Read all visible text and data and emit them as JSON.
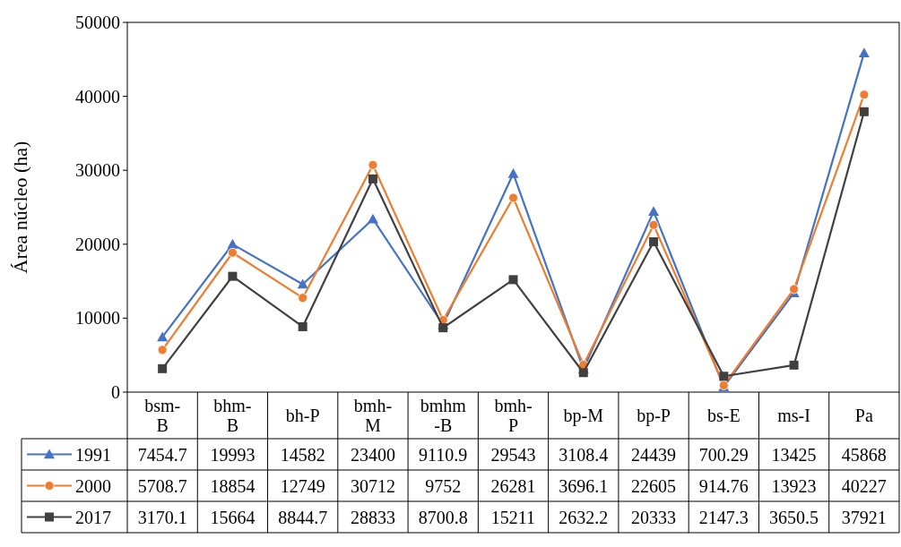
{
  "chart_data": {
    "type": "line",
    "ylabel": "Área núcleo (ha)",
    "categories": [
      "bsm-B",
      "bhm-B",
      "bh-P",
      "bmh-M",
      "bmhm-B",
      "bmh-P",
      "bp-M",
      "bp-P",
      "bs-E",
      "ms-I",
      "Pa"
    ],
    "ylim": [
      0,
      50000
    ],
    "yticks": [
      0,
      10000,
      20000,
      30000,
      40000,
      50000
    ],
    "grid": false,
    "legend": "bottom",
    "data_labels": true,
    "series": [
      {
        "name": "1991",
        "color": "#4472c4",
        "marker": "triangle",
        "values": [
          7454.7,
          19993,
          14582,
          23400,
          9110.9,
          29543,
          3108.4,
          24439,
          700.29,
          13425,
          45868
        ]
      },
      {
        "name": "2000",
        "color": "#ed7d31",
        "marker": "circle",
        "values": [
          5708.7,
          18854,
          12749,
          30712,
          9752,
          26281,
          3696.1,
          22605,
          914.76,
          13923,
          40227
        ]
      },
      {
        "name": "2017",
        "color": "#404040",
        "marker": "square",
        "values": [
          3170.1,
          15664,
          8844.7,
          28833,
          8700.8,
          15211,
          2632.2,
          20333,
          2147.3,
          3650.5,
          37921
        ]
      }
    ]
  }
}
